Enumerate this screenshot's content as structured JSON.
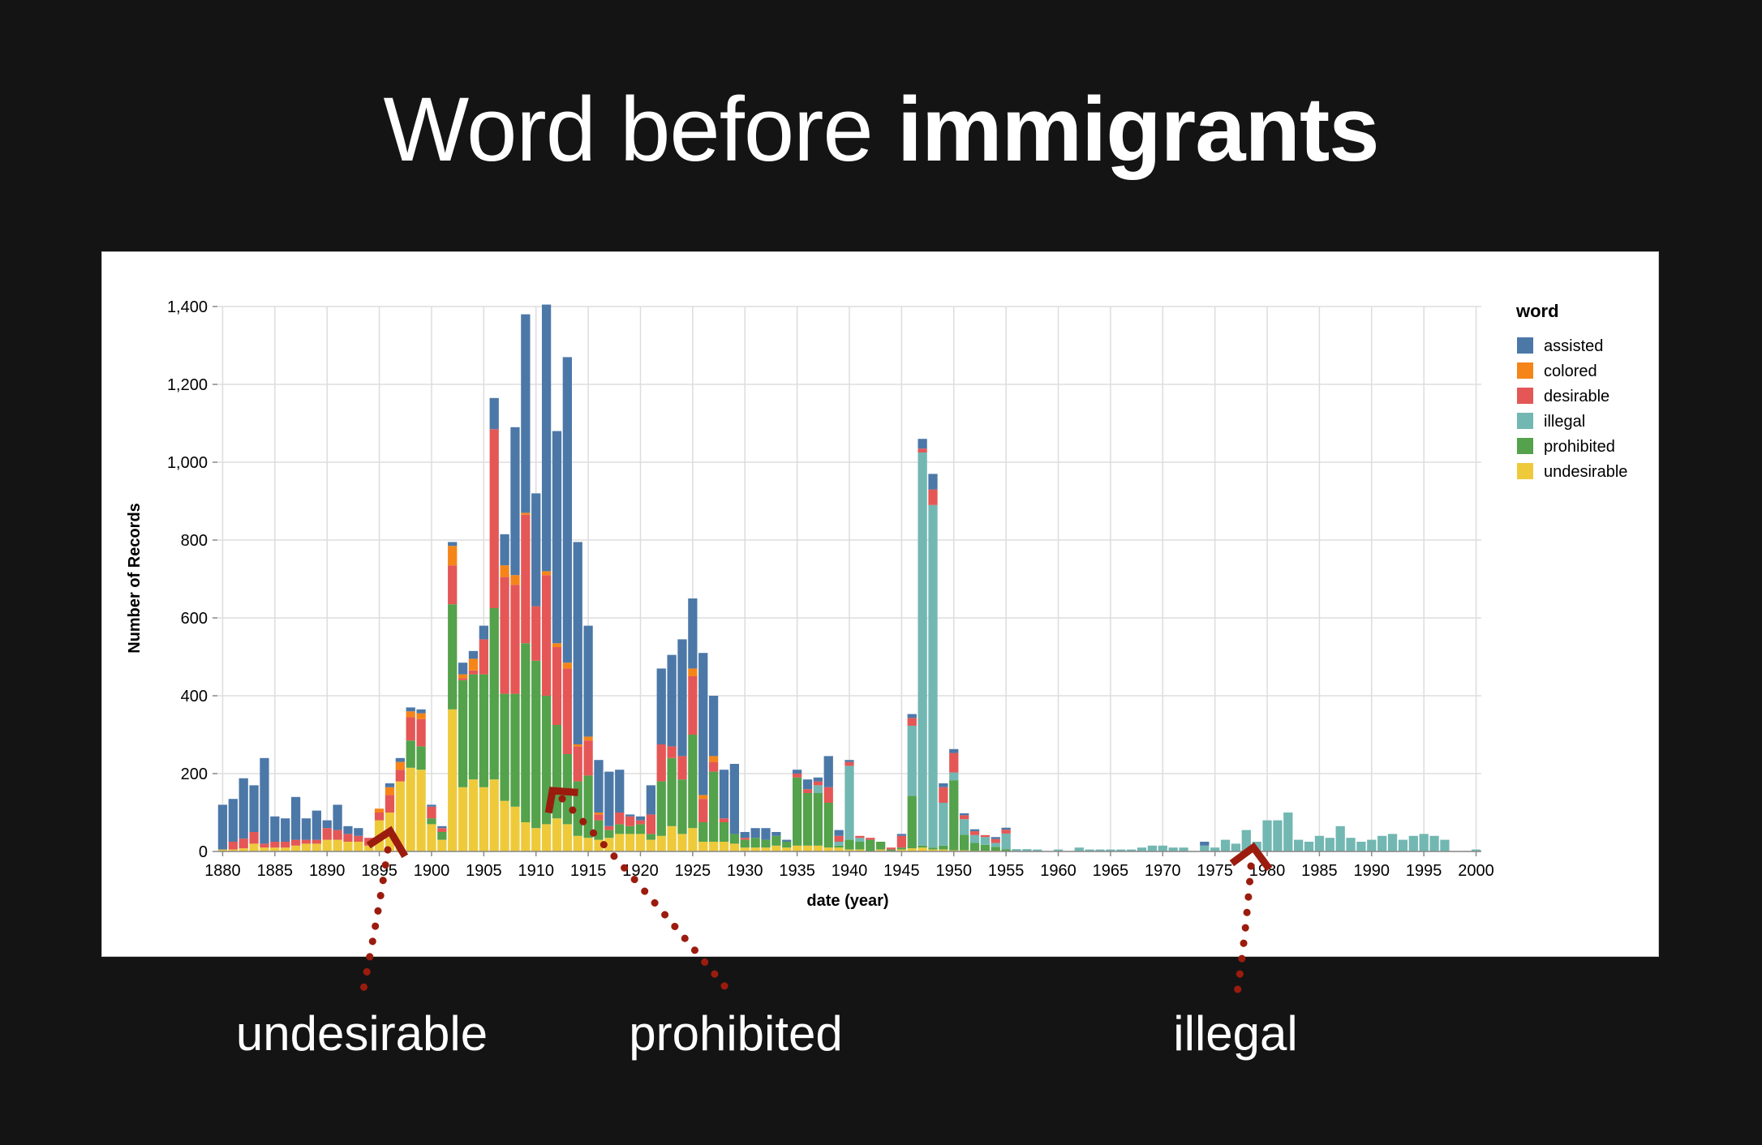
{
  "slide": {
    "title_plain": "Word before",
    "title_bold": "immigrants"
  },
  "callouts": [
    "undesirable",
    "prohibited",
    "illegal"
  ],
  "chart_data": {
    "type": "bar",
    "stacked": true,
    "xlabel": "date (year)",
    "ylabel": "Number of Records",
    "ylim": [
      0,
      1400
    ],
    "yticks": [
      0,
      200,
      400,
      600,
      800,
      1000,
      1200,
      1400
    ],
    "ytick_labels": [
      "0",
      "200",
      "400",
      "600",
      "800",
      "1,000",
      "1,200",
      "1,400"
    ],
    "xticks": [
      1880,
      1885,
      1890,
      1895,
      1900,
      1905,
      1910,
      1915,
      1920,
      1925,
      1930,
      1935,
      1940,
      1945,
      1950,
      1955,
      1960,
      1965,
      1970,
      1975,
      1980,
      1985,
      1990,
      1995,
      2000
    ],
    "grid": true,
    "legend": {
      "title": "word",
      "position": "right"
    },
    "series_colors": {
      "assisted": "#4c78a8",
      "colored": "#f58518",
      "desirable": "#e45756",
      "illegal": "#72b7b2",
      "prohibited": "#54a24b",
      "undesirable": "#eeca3b"
    },
    "series_order": [
      "undesirable",
      "prohibited",
      "illegal",
      "desirable",
      "colored",
      "assisted"
    ],
    "legend_order": [
      "assisted",
      "colored",
      "desirable",
      "illegal",
      "prohibited",
      "undesirable"
    ],
    "years": [
      1880,
      1881,
      1882,
      1883,
      1884,
      1885,
      1886,
      1887,
      1888,
      1889,
      1890,
      1891,
      1892,
      1893,
      1894,
      1895,
      1896,
      1897,
      1898,
      1899,
      1900,
      1901,
      1902,
      1903,
      1904,
      1905,
      1906,
      1907,
      1908,
      1909,
      1910,
      1911,
      1912,
      1913,
      1914,
      1915,
      1916,
      1917,
      1918,
      1919,
      1920,
      1921,
      1922,
      1923,
      1924,
      1925,
      1926,
      1927,
      1928,
      1929,
      1930,
      1931,
      1932,
      1933,
      1934,
      1935,
      1936,
      1937,
      1938,
      1939,
      1940,
      1941,
      1942,
      1943,
      1944,
      1945,
      1946,
      1947,
      1948,
      1949,
      1950,
      1951,
      1952,
      1953,
      1954,
      1955,
      1956,
      1957,
      1958,
      1959,
      1960,
      1961,
      1962,
      1963,
      1964,
      1965,
      1966,
      1967,
      1968,
      1969,
      1970,
      1971,
      1972,
      1973,
      1974,
      1975,
      1976,
      1977,
      1978,
      1979,
      1980,
      1981,
      1982,
      1983,
      1984,
      1985,
      1986,
      1987,
      1988,
      1989,
      1990,
      1991,
      1992,
      1993,
      1994,
      1995,
      1996,
      1997,
      1998,
      1999,
      2000
    ],
    "series": [
      {
        "name": "undesirable",
        "values": [
          5,
          5,
          8,
          20,
          10,
          10,
          10,
          15,
          20,
          20,
          30,
          30,
          25,
          25,
          15,
          80,
          100,
          180,
          215,
          210,
          70,
          30,
          365,
          165,
          185,
          165,
          185,
          130,
          115,
          75,
          60,
          70,
          85,
          70,
          40,
          35,
          30,
          35,
          45,
          45,
          45,
          30,
          40,
          65,
          45,
          60,
          25,
          25,
          25,
          20,
          10,
          10,
          10,
          15,
          10,
          15,
          15,
          15,
          10,
          10,
          5,
          5,
          0,
          5,
          0,
          5,
          8,
          10,
          5,
          5,
          3,
          3,
          2,
          2,
          2,
          1,
          1,
          1,
          0,
          0,
          0,
          0,
          0,
          0,
          0,
          0,
          0,
          0,
          0,
          0,
          0,
          0,
          0,
          0,
          0,
          0,
          0,
          0,
          0,
          0,
          0,
          0,
          0,
          0,
          0,
          0,
          0,
          0,
          0,
          0,
          0,
          0,
          0,
          0,
          0,
          0,
          0,
          0,
          0,
          0,
          0
        ]
      },
      {
        "name": "prohibited",
        "values": [
          0,
          0,
          0,
          0,
          0,
          0,
          0,
          0,
          0,
          0,
          0,
          0,
          0,
          0,
          0,
          0,
          0,
          0,
          70,
          60,
          15,
          20,
          270,
          275,
          270,
          290,
          440,
          275,
          290,
          460,
          430,
          330,
          240,
          180,
          140,
          160,
          50,
          20,
          25,
          20,
          25,
          15,
          140,
          175,
          140,
          240,
          50,
          180,
          50,
          25,
          20,
          25,
          20,
          25,
          15,
          175,
          135,
          135,
          115,
          5,
          25,
          20,
          30,
          20,
          5,
          5,
          135,
          5,
          5,
          10,
          180,
          40,
          20,
          15,
          10,
          5,
          0,
          0,
          0,
          0,
          0,
          0,
          0,
          0,
          0,
          0,
          0,
          0,
          0,
          0,
          0,
          0,
          0,
          0,
          0,
          0,
          0,
          0,
          0,
          0,
          0,
          0,
          0,
          0,
          0,
          0,
          0,
          0,
          0,
          0,
          0,
          0,
          0,
          0,
          0,
          0,
          0,
          0,
          0,
          0,
          0
        ]
      },
      {
        "name": "illegal",
        "values": [
          0,
          0,
          0,
          0,
          0,
          0,
          0,
          0,
          0,
          0,
          0,
          0,
          0,
          0,
          0,
          0,
          0,
          0,
          0,
          0,
          0,
          0,
          0,
          0,
          0,
          0,
          0,
          0,
          0,
          0,
          0,
          0,
          0,
          0,
          0,
          0,
          0,
          0,
          0,
          0,
          0,
          0,
          0,
          0,
          0,
          0,
          0,
          0,
          0,
          0,
          0,
          0,
          0,
          0,
          0,
          0,
          0,
          20,
          0,
          10,
          190,
          10,
          0,
          0,
          0,
          0,
          180,
          1010,
          880,
          110,
          20,
          40,
          20,
          20,
          10,
          40,
          5,
          5,
          5,
          0,
          5,
          0,
          10,
          5,
          5,
          5,
          5,
          5,
          10,
          15,
          15,
          10,
          10,
          0,
          15,
          10,
          30,
          20,
          55,
          25,
          80,
          80,
          100,
          30,
          25,
          40,
          35,
          65,
          35,
          25,
          30,
          40,
          45,
          30,
          40,
          45,
          40,
          30,
          0,
          0,
          5
        ]
      },
      {
        "name": "desirable",
        "values": [
          0,
          20,
          25,
          30,
          10,
          15,
          15,
          15,
          10,
          10,
          30,
          25,
          20,
          15,
          20,
          20,
          45,
          30,
          60,
          70,
          30,
          10,
          100,
          5,
          10,
          90,
          460,
          300,
          280,
          330,
          140,
          310,
          200,
          220,
          90,
          90,
          15,
          10,
          30,
          25,
          10,
          50,
          95,
          30,
          60,
          150,
          60,
          25,
          10,
          0,
          5,
          0,
          0,
          0,
          0,
          10,
          10,
          10,
          40,
          15,
          10,
          5,
          5,
          0,
          5,
          30,
          20,
          10,
          40,
          40,
          50,
          10,
          10,
          5,
          10,
          10,
          0,
          0,
          0,
          0,
          0,
          0,
          0,
          0,
          0,
          0,
          0,
          0,
          0,
          0,
          0,
          0,
          0,
          0,
          0,
          0,
          0,
          0,
          0,
          0,
          0,
          0,
          0,
          0,
          0,
          0,
          0,
          0,
          0,
          0,
          0,
          0,
          0,
          0,
          0,
          0,
          0,
          0,
          0,
          0,
          0
        ]
      },
      {
        "name": "colored",
        "values": [
          0,
          0,
          0,
          0,
          0,
          0,
          0,
          0,
          0,
          0,
          0,
          0,
          0,
          0,
          0,
          10,
          20,
          20,
          15,
          15,
          0,
          0,
          50,
          10,
          30,
          0,
          0,
          30,
          25,
          5,
          0,
          10,
          10,
          15,
          5,
          10,
          5,
          0,
          0,
          0,
          0,
          0,
          0,
          0,
          0,
          20,
          10,
          15,
          0,
          0,
          0,
          0,
          0,
          0,
          0,
          0,
          0,
          0,
          0,
          0,
          0,
          0,
          0,
          0,
          0,
          0,
          0,
          0,
          0,
          0,
          0,
          0,
          0,
          0,
          0,
          0,
          0,
          0,
          0,
          0,
          0,
          0,
          0,
          0,
          0,
          0,
          0,
          0,
          0,
          0,
          0,
          0,
          0,
          0,
          0,
          0,
          0,
          0,
          0,
          0,
          0,
          0,
          0,
          0,
          0,
          0,
          0,
          0,
          0,
          0,
          0,
          0,
          0,
          0,
          0,
          0,
          0,
          0,
          0,
          0,
          0
        ]
      },
      {
        "name": "assisted",
        "values": [
          115,
          110,
          155,
          120,
          220,
          65,
          60,
          110,
          55,
          75,
          20,
          65,
          20,
          20,
          0,
          0,
          10,
          10,
          10,
          10,
          5,
          5,
          10,
          30,
          20,
          35,
          80,
          80,
          380,
          510,
          290,
          685,
          545,
          785,
          520,
          285,
          135,
          140,
          110,
          5,
          10,
          75,
          195,
          235,
          300,
          180,
          365,
          155,
          125,
          180,
          15,
          25,
          30,
          10,
          5,
          10,
          25,
          10,
          80,
          15,
          5,
          0,
          0,
          0,
          0,
          5,
          10,
          25,
          40,
          10,
          10,
          5,
          5,
          0,
          5,
          5,
          0,
          0,
          0,
          0,
          0,
          0,
          0,
          0,
          0,
          0,
          0,
          0,
          0,
          0,
          0,
          0,
          0,
          0,
          10,
          0,
          0,
          0,
          0,
          0,
          0,
          0,
          0,
          0,
          0,
          0,
          0,
          0,
          0,
          0,
          0,
          0,
          0,
          0,
          0,
          0,
          0,
          0,
          0,
          0,
          0
        ]
      }
    ]
  }
}
